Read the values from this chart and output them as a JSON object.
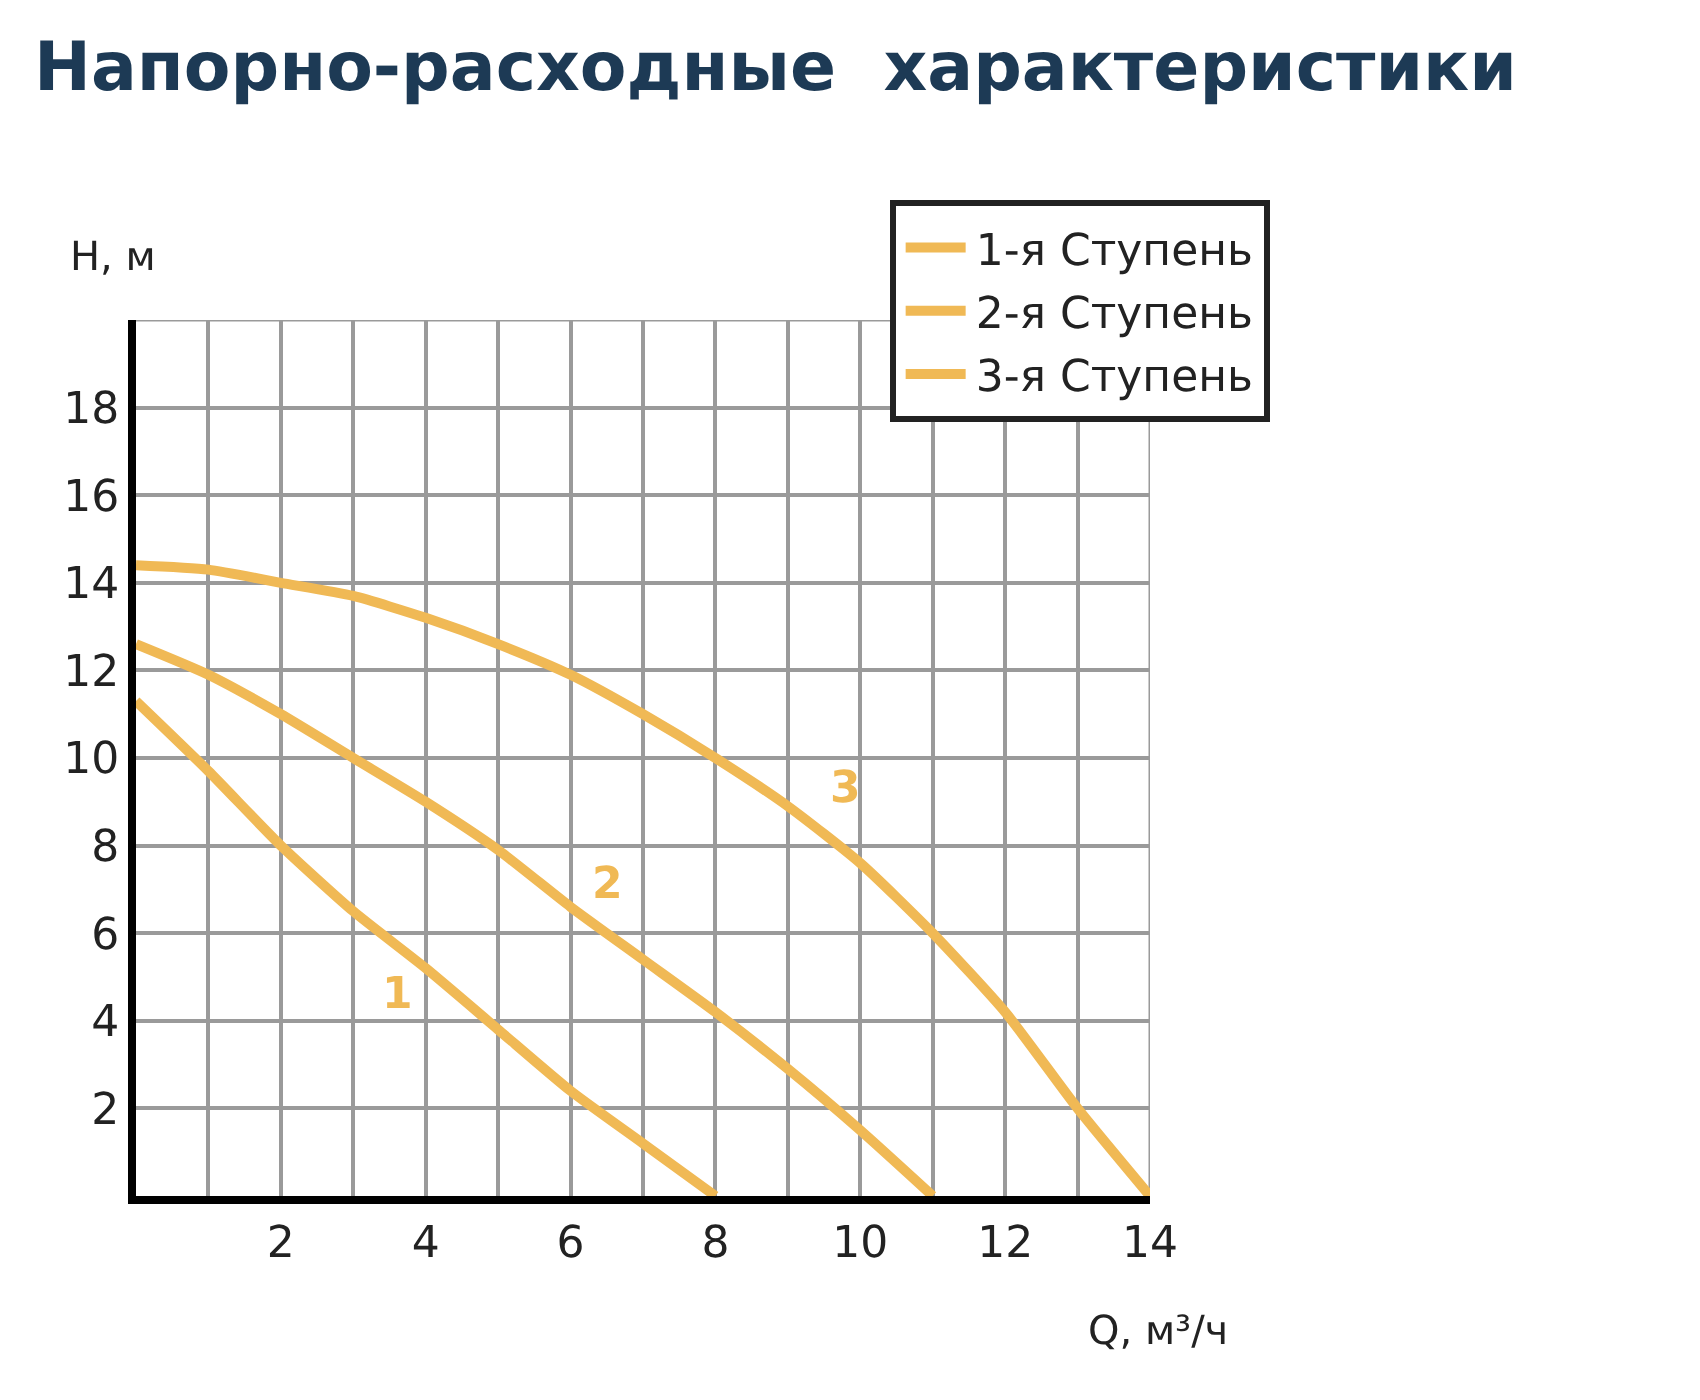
{
  "chart_data": {
    "type": "line",
    "title": "Напорно-расходные  характеристики",
    "xlabel": "Q, м³/ч",
    "ylabel": "H, м",
    "xlim": [
      0,
      14
    ],
    "ylim": [
      0,
      20
    ],
    "xticks": [
      {
        "value": 1,
        "label": null
      },
      2,
      {
        "value": 3,
        "label": null
      },
      4,
      {
        "value": 5,
        "label": null
      },
      6,
      {
        "value": 7,
        "label": null
      },
      8,
      {
        "value": 9,
        "label": null
      },
      10,
      {
        "value": 11,
        "label": null
      },
      12,
      {
        "value": 13,
        "label": null
      },
      14
    ],
    "yticks": [
      2,
      4,
      6,
      8,
      10,
      12,
      14,
      16,
      18,
      {
        "value": 20,
        "label": null
      }
    ],
    "grid": true,
    "legend": "top right",
    "marker": "none",
    "line_style": "solid",
    "series": [
      {
        "name": "1-я Ступень",
        "color": "#f0b955",
        "x": [
          0,
          1,
          2,
          3,
          4,
          5,
          6,
          7,
          8
        ],
        "values": [
          11.3,
          9.7,
          8,
          6.5,
          5.2,
          3.8,
          2.4,
          1.2,
          0
        ]
      },
      {
        "name": "2-я Ступень",
        "color": "#f0b955",
        "x": [
          0,
          1,
          2,
          3,
          4,
          5,
          6,
          7,
          8,
          9,
          10,
          11
        ],
        "values": [
          12.6,
          11.9,
          11,
          10,
          9,
          7.9,
          6.6,
          5.4,
          4.2,
          2.9,
          1.5,
          0
        ]
      },
      {
        "name": "3-я Ступень",
        "color": "#f0b955",
        "x": [
          0,
          1,
          2,
          3,
          4,
          5,
          6,
          7,
          8,
          9,
          10,
          11,
          12,
          13,
          14
        ],
        "values": [
          14.4,
          14.3,
          14,
          13.7,
          13.2,
          12.6,
          11.9,
          11,
          10,
          8.9,
          7.6,
          6,
          4.2,
          2,
          0
        ]
      }
    ],
    "annotations": [
      "1",
      "2",
      "3"
    ]
  }
}
